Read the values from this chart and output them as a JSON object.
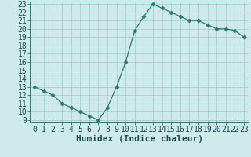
{
  "x": [
    0,
    1,
    2,
    3,
    4,
    5,
    6,
    7,
    8,
    9,
    10,
    11,
    12,
    13,
    14,
    15,
    16,
    17,
    18,
    19,
    20,
    21,
    22,
    23
  ],
  "y": [
    13.0,
    12.5,
    12.0,
    11.0,
    10.5,
    10.0,
    9.5,
    9.0,
    10.5,
    13.0,
    16.0,
    19.8,
    21.5,
    23.0,
    22.5,
    22.0,
    21.5,
    21.0,
    21.0,
    20.5,
    20.0,
    20.0,
    19.8,
    19.0
  ],
  "line_color": "#2a7a6a",
  "marker": "D",
  "marker_size": 2.5,
  "bg_color": "#ceeaea",
  "grid_color": "#9fc8c8",
  "xlabel": "Humidex (Indice chaleur)",
  "ylim_min": 9,
  "ylim_max": 23,
  "xlim_min": -0.5,
  "xlim_max": 23.5,
  "yticks": [
    9,
    10,
    11,
    12,
    13,
    14,
    15,
    16,
    17,
    18,
    19,
    20,
    21,
    22,
    23
  ],
  "xticks": [
    0,
    1,
    2,
    3,
    4,
    5,
    6,
    7,
    8,
    9,
    10,
    11,
    12,
    13,
    14,
    15,
    16,
    17,
    18,
    19,
    20,
    21,
    22,
    23
  ],
  "tick_fontsize": 7,
  "xlabel_fontsize": 8
}
